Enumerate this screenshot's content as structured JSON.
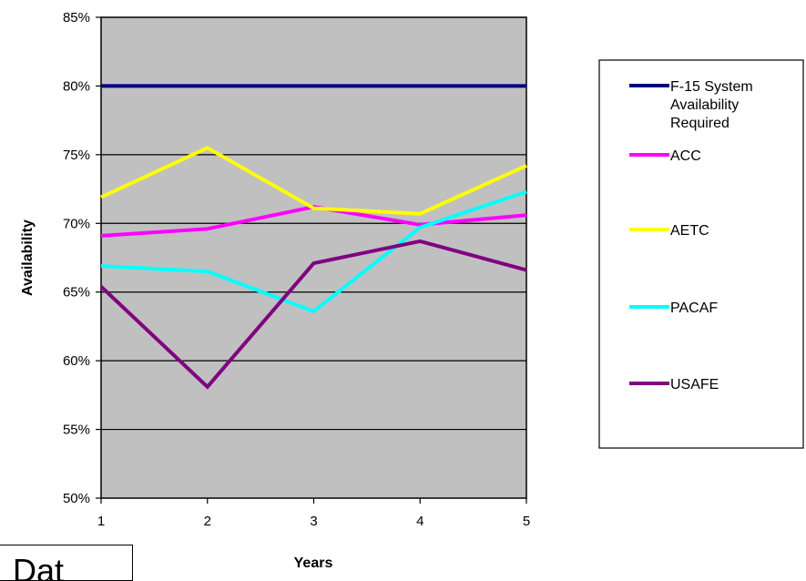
{
  "chart_data": {
    "type": "line",
    "title": "",
    "xlabel": "Years",
    "ylabel": "Availability",
    "categories": [
      "1",
      "2",
      "3",
      "4",
      "5"
    ],
    "y_ticks": [
      "50%",
      "55%",
      "60%",
      "65%",
      "70%",
      "75%",
      "80%",
      "85%"
    ],
    "ylim": [
      50,
      85
    ],
    "grid": "horizontal",
    "plot_background": "#c0c0c0",
    "legend_position": "right",
    "series": [
      {
        "name": "F-15 System Availability Required",
        "name_lines": [
          "F-15 System",
          "Availability",
          "Required"
        ],
        "color": "#000080",
        "values": [
          80,
          80,
          80,
          80,
          80
        ]
      },
      {
        "name": "ACC",
        "name_lines": [
          "ACC"
        ],
        "color": "#ff00ff",
        "values": [
          69.1,
          69.6,
          71.2,
          69.9,
          70.6
        ]
      },
      {
        "name": "AETC",
        "name_lines": [
          "AETC"
        ],
        "color": "#ffff00",
        "values": [
          71.9,
          75.5,
          71.1,
          70.7,
          74.2
        ]
      },
      {
        "name": "PACAF",
        "name_lines": [
          "PACAF"
        ],
        "color": "#00ffff",
        "values": [
          66.9,
          66.5,
          63.6,
          69.7,
          72.3
        ]
      },
      {
        "name": "USAFE",
        "name_lines": [
          "USAFE"
        ],
        "color": "#800080",
        "values": [
          65.4,
          58.1,
          67.1,
          68.7,
          66.6
        ]
      }
    ]
  },
  "corner_label": "Dat"
}
